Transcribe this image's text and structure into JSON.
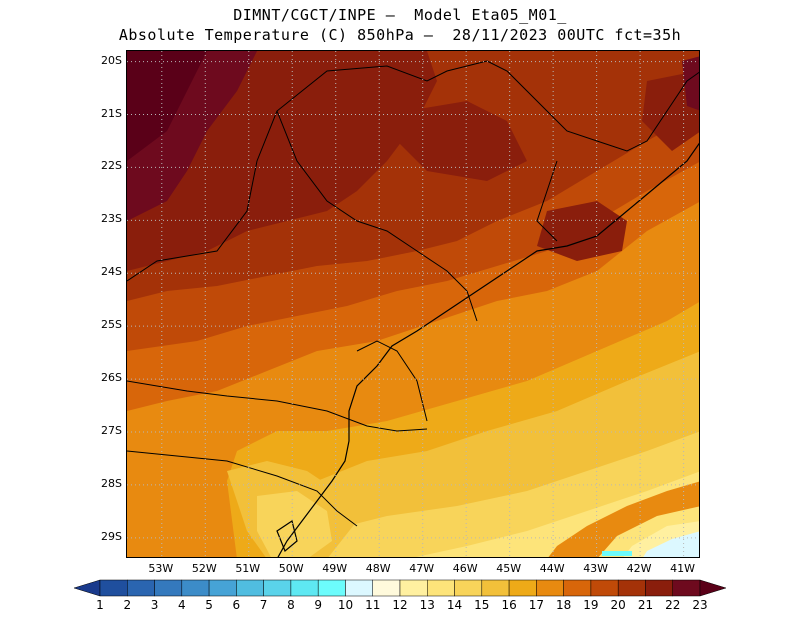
{
  "header": {
    "line1": "DIMNT/CGCT/INPE –  Model Eta05_M01_",
    "line2": "Absolute Temperature (C) 850hPa –  28/11/2023 00UTC fct=35h"
  },
  "map": {
    "lat_range": [
      -29.4,
      -19.8
    ],
    "lon_range": [
      -53.8,
      -40.6
    ],
    "lat_ticks": [
      {
        "value": -20,
        "label": "20S"
      },
      {
        "value": -21,
        "label": "21S"
      },
      {
        "value": -22,
        "label": "22S"
      },
      {
        "value": -23,
        "label": "23S"
      },
      {
        "value": -24,
        "label": "24S"
      },
      {
        "value": -25,
        "label": "25S"
      },
      {
        "value": -26,
        "label": "26S"
      },
      {
        "value": -27,
        "label": "27S"
      },
      {
        "value": -28,
        "label": "28S"
      },
      {
        "value": -29,
        "label": "29S"
      }
    ],
    "lon_ticks": [
      {
        "value": -53,
        "label": "53W"
      },
      {
        "value": -52,
        "label": "52W"
      },
      {
        "value": -51,
        "label": "51W"
      },
      {
        "value": -50,
        "label": "50W"
      },
      {
        "value": -49,
        "label": "49W"
      },
      {
        "value": -48,
        "label": "48W"
      },
      {
        "value": -47,
        "label": "47W"
      },
      {
        "value": -46,
        "label": "46W"
      },
      {
        "value": -45,
        "label": "45W"
      },
      {
        "value": -44,
        "label": "44W"
      },
      {
        "value": -43,
        "label": "43W"
      },
      {
        "value": -42,
        "label": "42W"
      },
      {
        "value": -41,
        "label": "41W"
      }
    ]
  },
  "colorbar": {
    "labels": [
      "1",
      "2",
      "3",
      "4",
      "5",
      "6",
      "7",
      "8",
      "9",
      "10",
      "11",
      "12",
      "13",
      "14",
      "15",
      "16",
      "17",
      "18",
      "19",
      "20",
      "21",
      "22",
      "23"
    ],
    "colors": [
      "#1a3a8c",
      "#1f4f9e",
      "#2a65b0",
      "#3479bd",
      "#3c8cc8",
      "#46a3d6",
      "#50bde0",
      "#5ad3ea",
      "#5ee8f2",
      "#6cfcfc",
      "#dcf8ff",
      "#fffadc",
      "#fff0a0",
      "#fde47a",
      "#f8d45a",
      "#f2c03a",
      "#eeaa18",
      "#e88a10",
      "#d8660a",
      "#c04a08",
      "#a43208",
      "#8a1e0c",
      "#6e0a1e",
      "#5a0018"
    ]
  }
}
